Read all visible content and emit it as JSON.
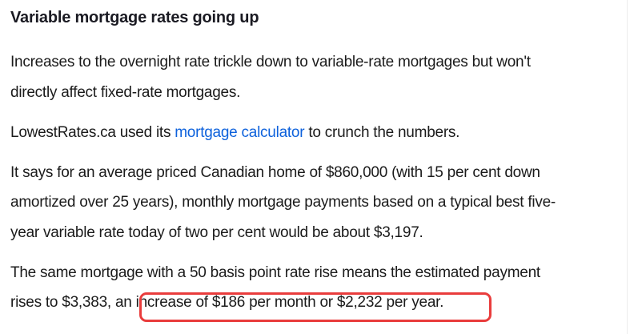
{
  "article": {
    "heading": "Variable mortgage rates going up",
    "p1": {
      "lines": [
        "Increases to the overnight rate trickle down to variable-rate mortgages but won't",
        "directly affect fixed-rate mortgages."
      ]
    },
    "p2": {
      "before": "LowestRates.ca used its ",
      "link_text": "mortgage calculator",
      "after": " to crunch the numbers."
    },
    "p3": {
      "lines": [
        "It says for an average priced Canadian home of $860,000 (with 15 per cent down",
        "amortized over 25 years), monthly mortgage payments based on a typical best five-",
        "year variable rate today of two per cent would be about $3,197."
      ]
    },
    "p4": {
      "lines": [
        "The same mortgage with a 50 basis point rate rise means the estimated payment",
        "rises to $3,383, an increase of $186 per month or $2,232 per year."
      ]
    }
  },
  "annotation": {
    "shape": "rounded-rectangle",
    "border_color": "#e93c3c",
    "highlights_text": "increase of $186 per month or $2,232 per year."
  },
  "colors": {
    "body_text": "#1b1b1b",
    "heading_text": "#1a1a22",
    "link": "#0e62dc",
    "background": "#ffffff"
  }
}
